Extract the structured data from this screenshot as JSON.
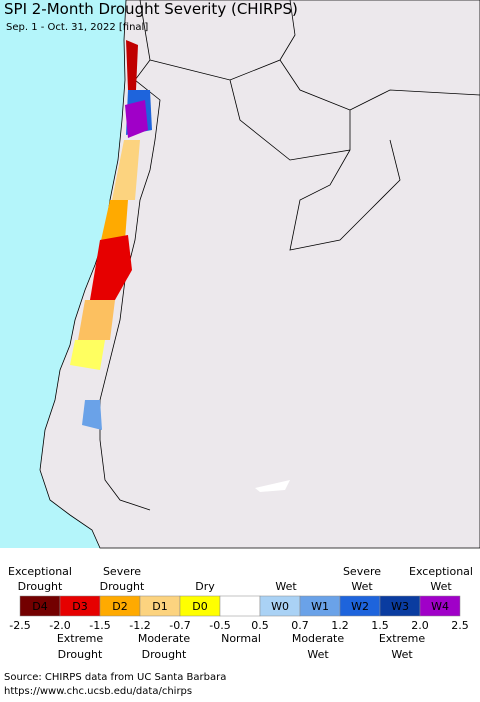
{
  "header": {
    "title": "SPI 2-Month Drought Severity (CHIRPS)",
    "subtitle": "Sep. 1 - Oct. 31, 2022 [final]"
  },
  "legend": {
    "top_labels": [
      [
        "Exceptional",
        "Drought"
      ],
      [
        "Severe",
        "Drought"
      ],
      [
        "Dry"
      ],
      [
        "Wet"
      ],
      [
        "Severe",
        "Wet"
      ],
      [
        "Exceptional",
        "Wet"
      ]
    ],
    "boxes": [
      {
        "label": "D4",
        "color": "#730000"
      },
      {
        "label": "D3",
        "color": "#e60000"
      },
      {
        "label": "D2",
        "color": "#ffaa00"
      },
      {
        "label": "D1",
        "color": "#fcd37f"
      },
      {
        "label": "D0",
        "color": "#ffff00"
      },
      {
        "color": "#ffffff"
      },
      {
        "label": "W0",
        "color": "#aad2f5"
      },
      {
        "label": "W1",
        "color": "#6aa2e8"
      },
      {
        "label": "W2",
        "color": "#1e64dc"
      },
      {
        "label": "W3",
        "color": "#0a3ca0"
      },
      {
        "label": "W4",
        "color": "#a000c8"
      }
    ],
    "edges": [
      "-2.5",
      "-2.0",
      "-1.5",
      "-1.2",
      "-0.7",
      "-0.5",
      "0.5",
      "0.7",
      "1.2",
      "1.5",
      "2.0",
      "2.5"
    ],
    "bottom_labels": [
      [
        "Extreme",
        "Drought"
      ],
      [
        "Moderate",
        "Drought"
      ],
      [
        "Normal"
      ],
      [
        "Moderate",
        "Wet"
      ],
      [
        "Extreme",
        "Wet"
      ]
    ]
  },
  "source": [
    "Source: CHIRPS data from UC Santa Barbara",
    "https://www.chc.ucsb.edu/data/chirps"
  ]
}
